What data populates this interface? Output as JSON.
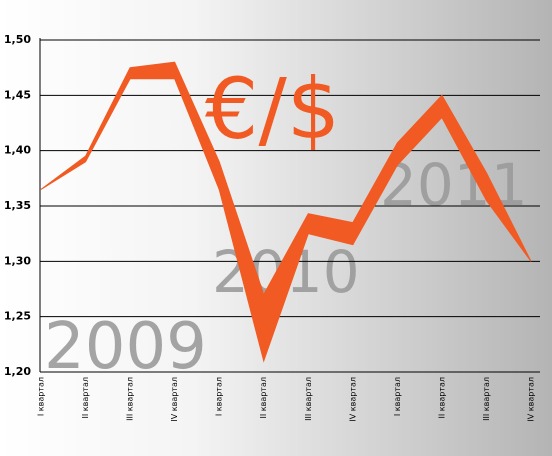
{
  "chart_data": {
    "type": "band",
    "title": "€/$",
    "annotations": [
      "2009",
      "2010",
      "2011"
    ],
    "categories": [
      "I квартал",
      "II квартал",
      "III квартал",
      "IV квартал",
      "I квартал",
      "II квартал",
      "III квартал",
      "IV квартал",
      "I квартал",
      "II квартал",
      "III квартал",
      "IV квартал"
    ],
    "series": [
      {
        "values": [
          1.365,
          1.395,
          1.475,
          1.48,
          1.39,
          1.27,
          1.343,
          1.335,
          1.407,
          1.45,
          1.38,
          1.3
        ]
      },
      {
        "values": [
          1.365,
          1.39,
          1.465,
          1.465,
          1.365,
          1.21,
          1.325,
          1.315,
          1.387,
          1.43,
          1.355,
          1.3
        ]
      }
    ],
    "color": "#f15a22",
    "ylim": [
      1.2,
      1.5
    ],
    "yticks": [
      {
        "value": 1.2,
        "label": "1,20"
      },
      {
        "value": 1.25,
        "label": "1,25"
      },
      {
        "value": 1.3,
        "label": "1,30"
      },
      {
        "value": 1.35,
        "label": "1,35"
      },
      {
        "value": 1.4,
        "label": "1,40"
      },
      {
        "value": 1.45,
        "label": "1,45"
      },
      {
        "value": 1.5,
        "label": "1,50"
      }
    ],
    "grid": true
  }
}
